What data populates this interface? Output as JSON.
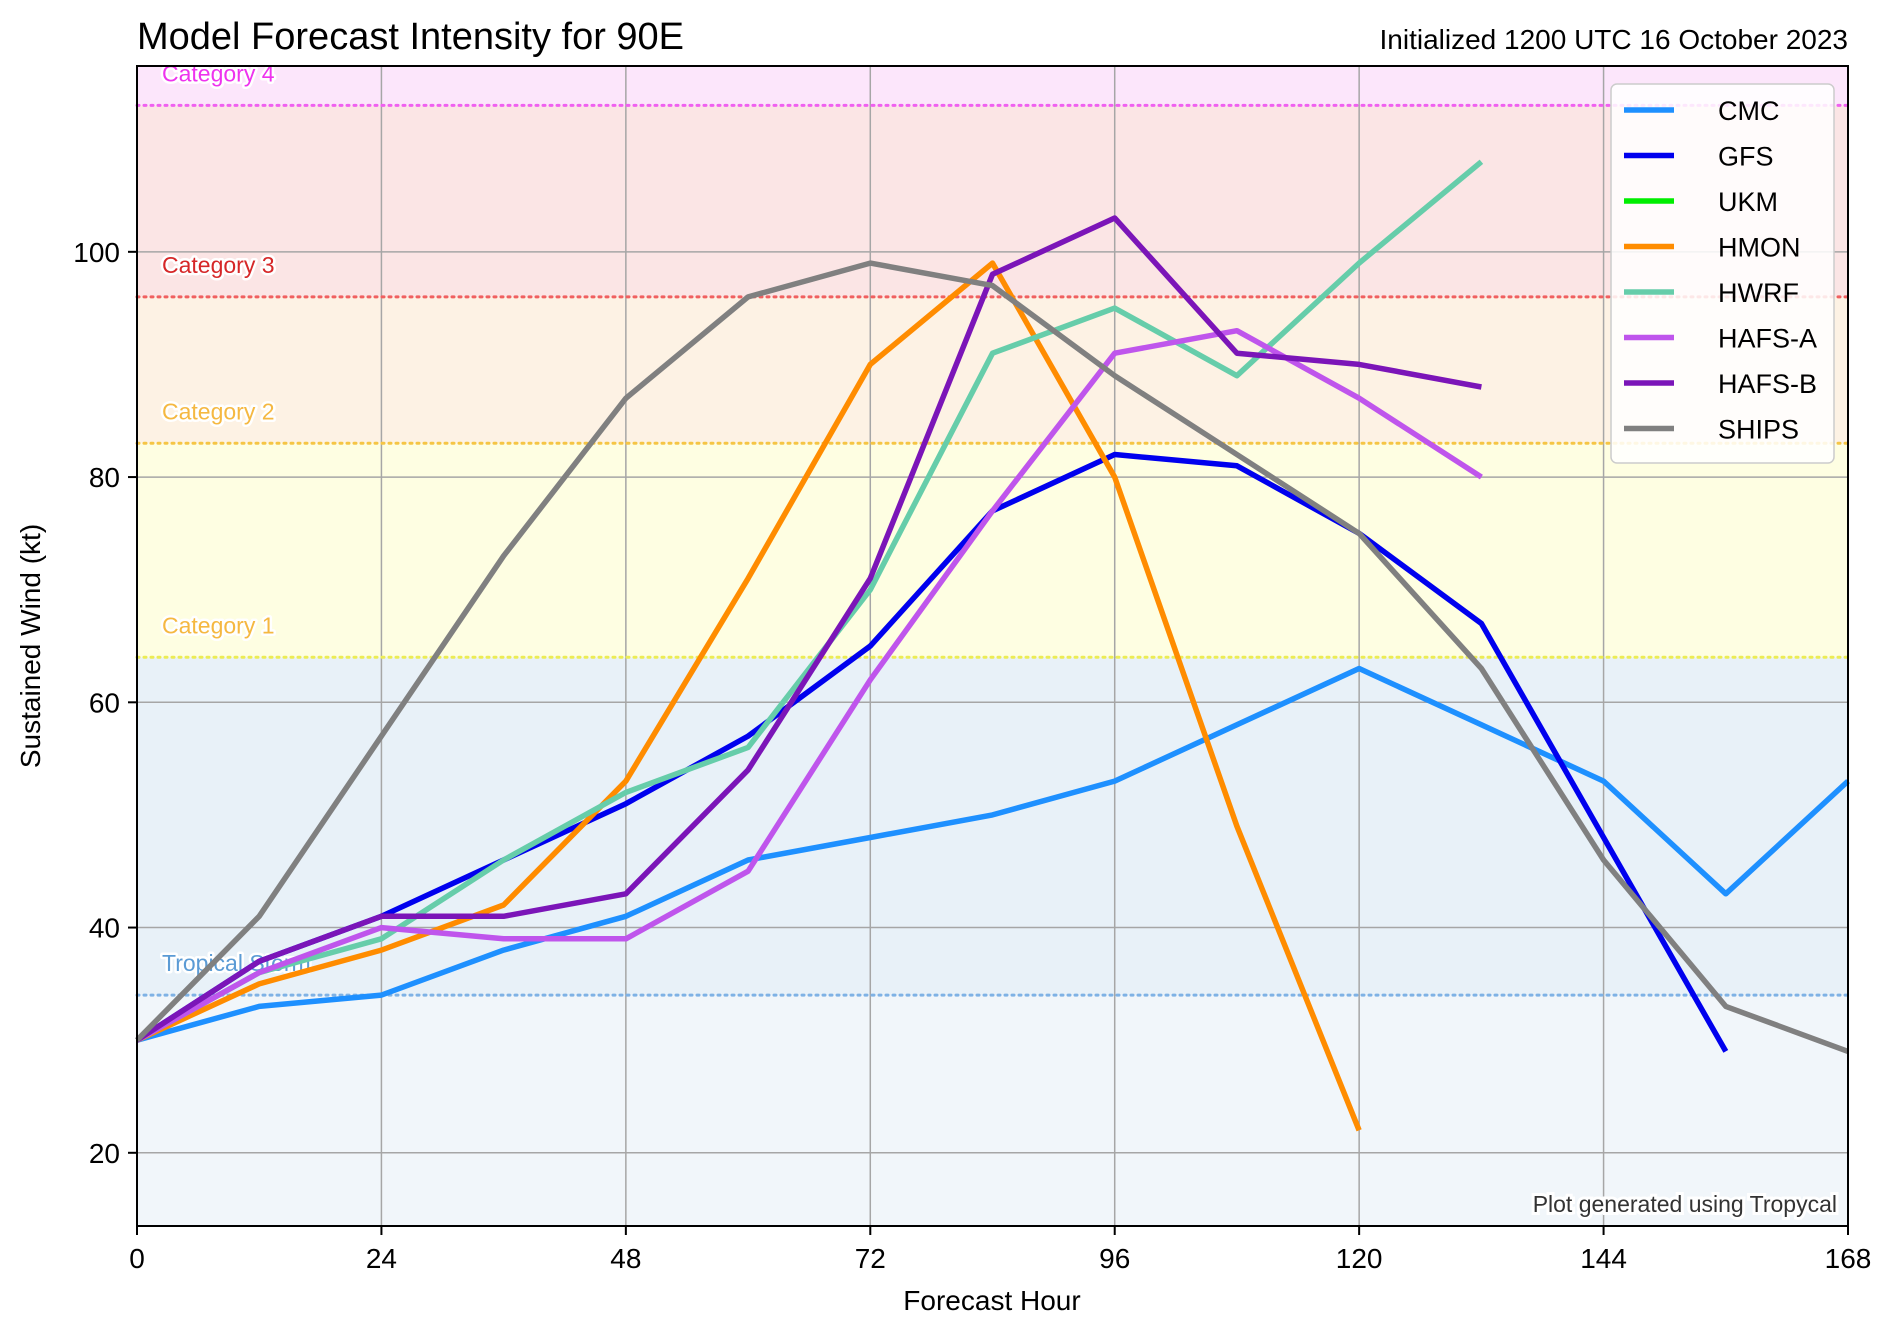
{
  "title": "Model Forecast Intensity for 90E",
  "subtitle": "Initialized 1200 UTC 16 October 2023",
  "credit": "Plot generated using Tropycal",
  "chart_data": {
    "type": "line",
    "xlabel": "Forecast Hour",
    "ylabel": "Sustained Wind (kt)",
    "xlim": [
      0,
      168
    ],
    "ylim": [
      13.5,
      116.5
    ],
    "xticks": [
      0,
      24,
      48,
      72,
      96,
      120,
      144,
      168
    ],
    "yticks": [
      20,
      40,
      60,
      80,
      100
    ],
    "grid": true,
    "legend_position": "top-right",
    "bands": [
      {
        "from": 13.5,
        "to": 34,
        "color": "#f1f6fa"
      },
      {
        "from": 34,
        "to": 64,
        "color": "#e8f1f8"
      },
      {
        "from": 64,
        "to": 83,
        "color": "#fefee2"
      },
      {
        "from": 83,
        "to": 96,
        "color": "#fdf2e4"
      },
      {
        "from": 96,
        "to": 113,
        "color": "#fbe5e5"
      },
      {
        "from": 113,
        "to": 116.5,
        "color": "#fce6fb"
      }
    ],
    "thresholds": [
      {
        "label": "Tropical Storm",
        "value": 34,
        "color": "#5b9bd5",
        "line_color": "#7fb2e5"
      },
      {
        "label": "Category 1",
        "value": 64,
        "color": "#f5b841",
        "line_color": "#ecec55"
      },
      {
        "label": "Category 2",
        "value": 83,
        "color": "#f5b841",
        "line_color": "#f5c545"
      },
      {
        "label": "Category 3",
        "value": 96,
        "color": "#d62728",
        "line_color": "#f06060"
      },
      {
        "label": "Category 4",
        "value": 113,
        "color": "#ee33ee",
        "line_color": "#f060f0"
      }
    ],
    "series": [
      {
        "name": "CMC",
        "color": "#1e90ff",
        "x": [
          0,
          12,
          24,
          36,
          48,
          60,
          72,
          84,
          96,
          108,
          120,
          132,
          144,
          156,
          168
        ],
        "y": [
          30,
          33,
          34,
          38,
          41,
          46,
          48,
          50,
          53,
          58,
          63,
          58,
          53,
          43,
          53
        ]
      },
      {
        "name": "GFS",
        "color": "#0000ee",
        "x": [
          0,
          12,
          24,
          36,
          48,
          60,
          72,
          84,
          96,
          108,
          120,
          132,
          144,
          156
        ],
        "y": [
          30,
          37,
          41,
          46,
          51,
          57,
          65,
          77,
          82,
          81,
          75,
          67,
          48,
          29
        ]
      },
      {
        "name": "UKM",
        "color": "#00ee00",
        "x": [],
        "y": []
      },
      {
        "name": "HMON",
        "color": "#ff8c00",
        "x": [
          0,
          12,
          24,
          36,
          48,
          60,
          72,
          84,
          96,
          108,
          120
        ],
        "y": [
          30,
          35,
          38,
          42,
          53,
          71,
          90,
          99,
          80,
          49,
          22
        ]
      },
      {
        "name": "HWRF",
        "color": "#66cdaa",
        "x": [
          0,
          12,
          24,
          36,
          48,
          60,
          72,
          84,
          96,
          108,
          120,
          132
        ],
        "y": [
          30,
          36,
          39,
          46,
          52,
          56,
          70,
          91,
          95,
          89,
          99,
          108
        ]
      },
      {
        "name": "HAFS-A",
        "color": "#bf55ec",
        "x": [
          0,
          12,
          24,
          36,
          48,
          60,
          72,
          84,
          96,
          108,
          120,
          132
        ],
        "y": [
          30,
          36,
          40,
          39,
          39,
          45,
          62,
          77,
          91,
          93,
          87,
          80
        ]
      },
      {
        "name": "HAFS-B",
        "color": "#7b15b8",
        "x": [
          0,
          12,
          24,
          36,
          48,
          60,
          72,
          84,
          96,
          108,
          120,
          132
        ],
        "y": [
          30,
          37,
          41,
          41,
          43,
          54,
          71,
          98,
          103,
          91,
          90,
          88
        ]
      },
      {
        "name": "SHIPS",
        "color": "#808080",
        "x": [
          0,
          12,
          24,
          36,
          48,
          60,
          72,
          84,
          96,
          108,
          120,
          132,
          144,
          156,
          168
        ],
        "y": [
          30,
          41,
          57,
          73,
          87,
          96,
          99,
          97,
          89,
          82,
          75,
          63,
          46,
          33,
          29
        ]
      }
    ]
  }
}
